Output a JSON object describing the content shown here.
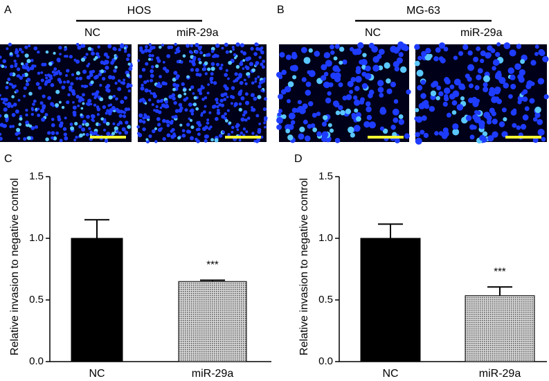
{
  "image_panels": [
    {
      "letter": "A",
      "cell_line": "HOS",
      "conditions": [
        "NC",
        "miR-29a"
      ]
    },
    {
      "letter": "B",
      "cell_line": "MG-63",
      "conditions": [
        "NC",
        "miR-29a"
      ]
    }
  ],
  "chart_data": [
    {
      "type": "bar",
      "panel": "C",
      "ylabel": "Relative invasion to negative control",
      "categories": [
        "NC",
        "miR-29a"
      ],
      "values": [
        1.0,
        0.65
      ],
      "errors": [
        0.15,
        0.01
      ],
      "colors": [
        "#000000",
        "#a8a8a8"
      ],
      "annotation": "***",
      "ylim": [
        0,
        1.5
      ],
      "yticks": [
        {
          "value": 0,
          "label": "0.0"
        },
        0.5,
        {
          "value": 1,
          "label": "1.0"
        },
        1.5
      ]
    },
    {
      "type": "bar",
      "panel": "D",
      "ylabel": "Relative invasion to negative control",
      "categories": [
        "NC",
        "miR-29a"
      ],
      "values": [
        1.0,
        0.535
      ],
      "errors": [
        0.115,
        0.07
      ],
      "colors": [
        "#000000",
        "#a8a8a8"
      ],
      "annotation": "***",
      "ylim": [
        0,
        1.5
      ],
      "yticks": [
        {
          "value": 0,
          "label": "0.0"
        },
        0.5,
        {
          "value": 1,
          "label": "1.0"
        },
        1.5
      ]
    }
  ]
}
